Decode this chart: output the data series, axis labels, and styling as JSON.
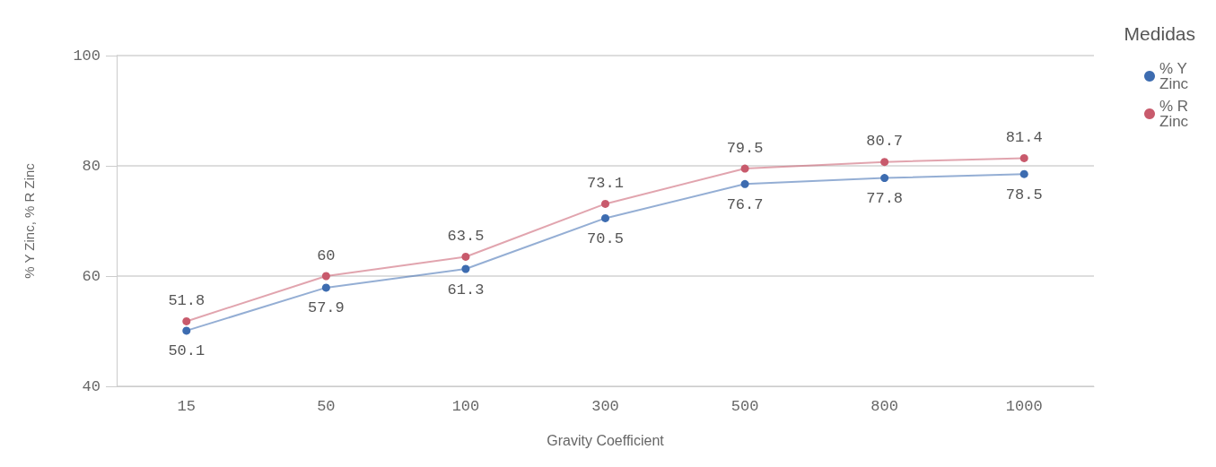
{
  "chart_data": {
    "type": "line",
    "xlabel": "Gravity Coefficient",
    "ylabel": "% Y Zinc, % R Zinc",
    "legend_title": "Medidas",
    "categories": [
      "15",
      "50",
      "100",
      "300",
      "500",
      "800",
      "1000"
    ],
    "series": [
      {
        "name": "% Y Zinc",
        "color": "#3d6cb0",
        "values": [
          50.1,
          57.9,
          61.3,
          70.5,
          76.7,
          77.8,
          78.5
        ]
      },
      {
        "name": "% R Zinc",
        "color": "#c85a6c",
        "values": [
          51.8,
          60,
          63.5,
          73.1,
          79.5,
          80.7,
          81.4
        ]
      }
    ],
    "ylim": [
      40,
      100
    ],
    "yticks": [
      40,
      60,
      80,
      100
    ],
    "grid": "y",
    "legend": "top right",
    "marker": "circle",
    "line_style": "solid",
    "data_labels": true
  }
}
